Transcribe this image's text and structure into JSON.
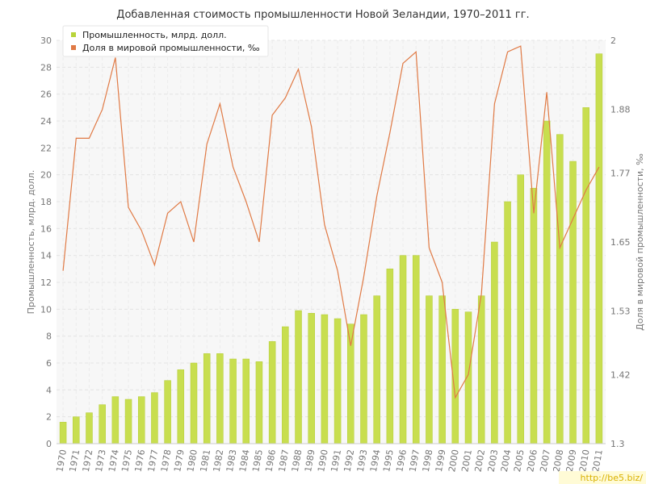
{
  "chart_data": {
    "type": "bar",
    "title": "Добавленная стоимость промышленности Новой Зеландии, 1970–2011 гг.",
    "categories": [
      "1970",
      "1971",
      "1972",
      "1973",
      "1974",
      "1975",
      "1976",
      "1977",
      "1978",
      "1979",
      "1980",
      "1981",
      "1982",
      "1983",
      "1984",
      "1985",
      "1986",
      "1987",
      "1988",
      "1989",
      "1990",
      "1991",
      "1992",
      "1993",
      "1994",
      "1995",
      "1996",
      "1997",
      "1998",
      "1999",
      "2000",
      "2001",
      "2002",
      "2003",
      "2004",
      "2005",
      "2006",
      "2007",
      "2008",
      "2009",
      "2010",
      "2011"
    ],
    "y_left": {
      "label": "Промышленность, млрд. долл.",
      "min": 0,
      "max": 30,
      "ticks": [
        0,
        2,
        4,
        6,
        8,
        10,
        12,
        14,
        16,
        18,
        20,
        22,
        24,
        26,
        28,
        30
      ]
    },
    "y_right": {
      "label": "Доля в мировой промышленности, ‰",
      "min": 1.3,
      "max": 2.0,
      "ticks": [
        1.3,
        1.42,
        1.53,
        1.65,
        1.77,
        1.88,
        2
      ]
    },
    "series": [
      {
        "name": "Промышленность, млрд. долл.",
        "type": "bar",
        "axis": "left",
        "color": "#c8de4f",
        "values": [
          1.6,
          2.0,
          2.3,
          2.9,
          3.5,
          3.3,
          3.5,
          3.8,
          4.7,
          5.5,
          6.0,
          6.7,
          6.7,
          6.3,
          6.3,
          6.1,
          7.6,
          8.7,
          9.9,
          9.7,
          9.6,
          9.3,
          8.9,
          9.6,
          11.0,
          13.0,
          14.0,
          14.0,
          11.0,
          11.0,
          10.0,
          9.8,
          11.0,
          15.0,
          18.0,
          20.0,
          19.0,
          24.0,
          23.0,
          21.0,
          25.0,
          29.0
        ]
      },
      {
        "name": "Доля в мировой промышленности, ‰",
        "type": "line",
        "axis": "right",
        "color": "#e07a45",
        "values": [
          1.6,
          1.83,
          1.83,
          1.88,
          1.97,
          1.71,
          1.67,
          1.61,
          1.7,
          1.72,
          1.65,
          1.82,
          1.89,
          1.78,
          1.72,
          1.65,
          1.87,
          1.9,
          1.95,
          1.85,
          1.68,
          1.6,
          1.47,
          1.59,
          1.73,
          1.84,
          1.96,
          1.98,
          1.64,
          1.58,
          1.38,
          1.42,
          1.56,
          1.89,
          1.98,
          1.99,
          1.7,
          1.91,
          1.64,
          1.69,
          1.74,
          1.78
        ]
      }
    ],
    "legend_position": "top-left",
    "grid": true
  },
  "watermark": "http://be5.biz/"
}
